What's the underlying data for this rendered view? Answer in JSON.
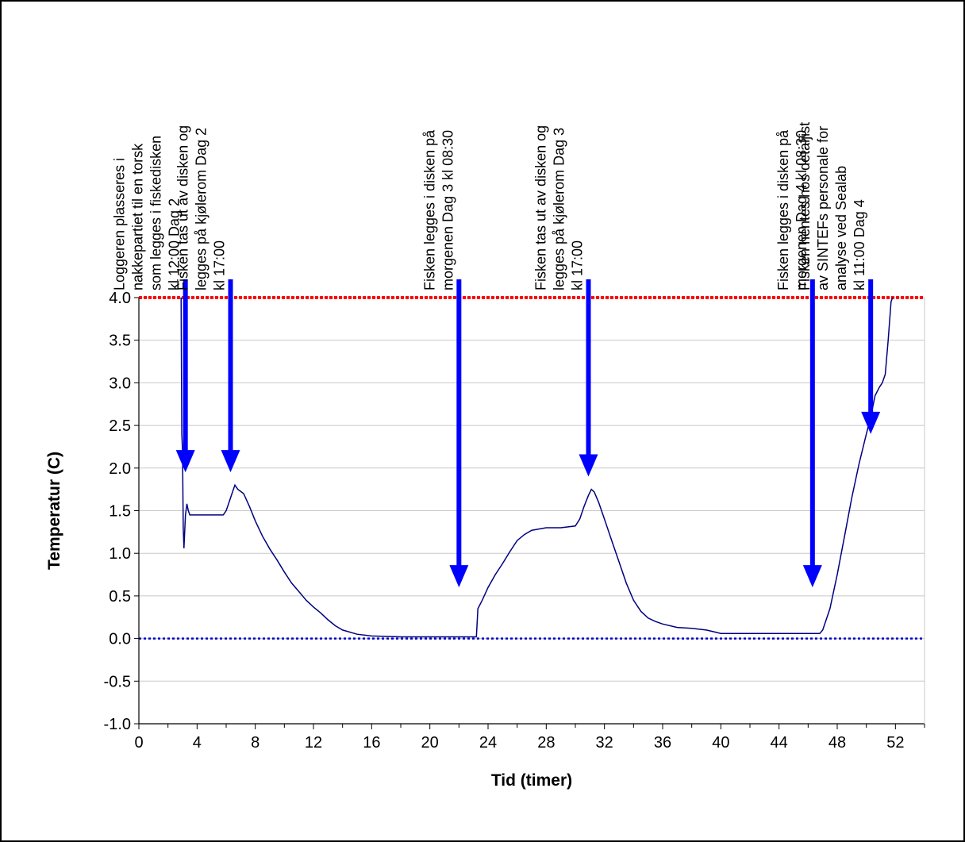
{
  "chart_data": {
    "type": "line",
    "xlabel": "Tid (timer)",
    "ylabel": "Temperatur (C)",
    "xlim": [
      0,
      54
    ],
    "ylim": [
      -1.0,
      4.0
    ],
    "xticks": [
      0,
      4,
      8,
      12,
      16,
      20,
      24,
      28,
      32,
      36,
      40,
      44,
      48,
      52
    ],
    "yticks": [
      -1.0,
      -0.5,
      0.0,
      0.5,
      1.0,
      1.5,
      2.0,
      2.5,
      3.0,
      3.5,
      4.0
    ],
    "grid": "horizontal",
    "colors": {
      "series": "#000080",
      "upper_limit": "#ff0000",
      "zero_line": "#0000cc",
      "arrows": "#0000ff"
    },
    "reference_lines": [
      {
        "y": 4.0,
        "style": "dotted",
        "color": "#ff0000"
      },
      {
        "y": 0.0,
        "style": "dotted",
        "color": "#0000cc"
      }
    ],
    "series": [
      {
        "x": [
          2.9,
          2.95,
          3.0,
          3.05,
          3.1,
          3.2,
          3.3,
          3.4,
          3.5,
          4.0,
          5.0,
          5.8,
          6.0,
          6.2,
          6.4,
          6.6,
          6.8,
          7.2,
          7.6,
          8.0,
          8.5,
          9.0,
          9.5,
          10.0,
          10.5,
          11.0,
          11.5,
          12.0,
          12.5,
          13.0,
          13.5,
          14.0,
          15.0,
          16.0,
          18.0,
          20.0,
          22.0,
          23.2,
          23.3,
          23.6,
          24.0,
          24.5,
          25.0,
          25.5,
          26.0,
          26.5,
          27.0,
          28.0,
          29.0,
          30.0,
          30.3,
          30.6,
          30.9,
          31.1,
          31.3,
          31.6,
          32.0,
          32.5,
          33.0,
          33.5,
          34.0,
          34.5,
          35.0,
          35.5,
          36.0,
          37.0,
          38.0,
          39.0,
          39.5,
          40.0,
          42.0,
          44.0,
          46.0,
          46.8,
          47.0,
          47.5,
          48.0,
          48.5,
          49.0,
          49.5,
          50.0,
          50.3,
          50.6,
          50.9,
          51.1,
          51.3,
          51.5,
          51.7,
          51.8
        ],
        "values": [
          4.0,
          2.4,
          2.2,
          1.3,
          1.06,
          1.45,
          1.58,
          1.5,
          1.45,
          1.45,
          1.45,
          1.45,
          1.5,
          1.6,
          1.7,
          1.8,
          1.75,
          1.7,
          1.55,
          1.38,
          1.2,
          1.05,
          0.92,
          0.78,
          0.65,
          0.55,
          0.45,
          0.37,
          0.3,
          0.22,
          0.15,
          0.1,
          0.05,
          0.03,
          0.02,
          0.02,
          0.02,
          0.02,
          0.35,
          0.45,
          0.6,
          0.75,
          0.88,
          1.02,
          1.15,
          1.22,
          1.27,
          1.3,
          1.3,
          1.32,
          1.4,
          1.55,
          1.68,
          1.75,
          1.72,
          1.6,
          1.4,
          1.15,
          0.9,
          0.65,
          0.45,
          0.32,
          0.24,
          0.2,
          0.17,
          0.13,
          0.12,
          0.1,
          0.08,
          0.06,
          0.06,
          0.06,
          0.06,
          0.06,
          0.1,
          0.35,
          0.75,
          1.2,
          1.65,
          2.05,
          2.4,
          2.6,
          2.85,
          2.95,
          3.0,
          3.1,
          3.5,
          3.95,
          4.0
        ]
      }
    ],
    "annotations": [
      {
        "x": 3.2,
        "y_tip": 1.95,
        "lines": [
          "Loggeren plasseres i",
          "nakkepartiet til en torsk",
          "som legges i fiskedisken",
          "kl 12:00 Dag 2"
        ]
      },
      {
        "x": 6.3,
        "y_tip": 1.95,
        "lines": [
          "Fisken tas ut av disken og",
          "legges på kjølerom Dag 2",
          "kl 17:00"
        ]
      },
      {
        "x": 22.0,
        "y_tip": 0.6,
        "lines": [
          "Fisken legges i disken på",
          "morgenen Dag 3 kl 08:30"
        ]
      },
      {
        "x": 30.9,
        "y_tip": 1.9,
        "lines": [
          "Fisken tas ut av disken og",
          "legges på kjølerom Dag 3",
          "kl 17:00"
        ]
      },
      {
        "x": 46.3,
        "y_tip": 0.6,
        "lines": [
          "Fisken legges i disken på",
          "morgenen Dag 4 kl 08:30"
        ]
      },
      {
        "x": 50.3,
        "y_tip": 2.4,
        "lines": [
          "Fisken hentes hos detaljist",
          "av SINTEFs personale for",
          "analyse ved Sealab",
          "kl 11:00 Dag 4"
        ]
      }
    ]
  }
}
